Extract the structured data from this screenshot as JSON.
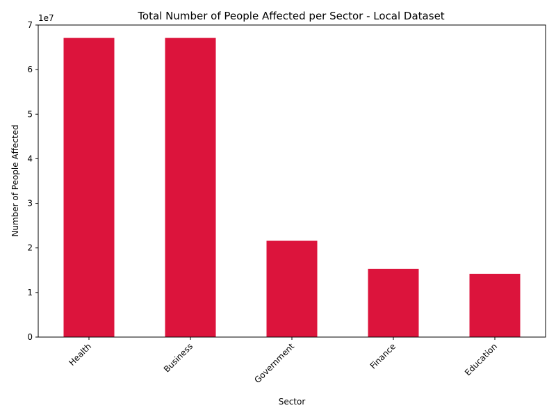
{
  "chart_data": {
    "type": "bar",
    "title": "Total Number of People Affected per Sector - Local Dataset",
    "xlabel": "Sector",
    "ylabel": "Number of People Affected",
    "y_scale_label": "1e7",
    "categories": [
      "Health",
      "Business",
      "Government",
      "Finance",
      "Education"
    ],
    "values": [
      67100000,
      67100000,
      21600000,
      15300000,
      14200000
    ],
    "ylim": [
      0,
      70000000
    ],
    "y_ticks": [
      0,
      10000000,
      20000000,
      30000000,
      40000000,
      50000000,
      60000000,
      70000000
    ],
    "y_tick_labels": [
      "0",
      "1",
      "2",
      "3",
      "4",
      "5",
      "6",
      "7"
    ],
    "bar_color": "#DC143C",
    "grid": false,
    "legend": "none"
  }
}
